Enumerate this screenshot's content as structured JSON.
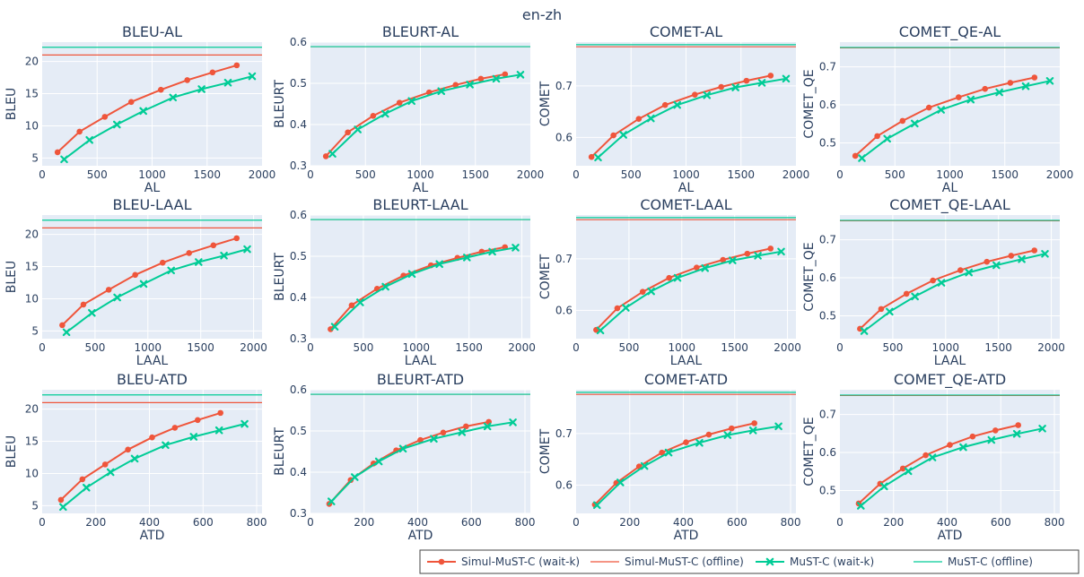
{
  "figure_title": "en-zh",
  "colors": {
    "simul_waitk": "#EF553B",
    "simul_offline": "#EF553B",
    "must_waitk": "#00CC96",
    "must_offline": "#00CC96",
    "plot_bg": "#E5ECF6",
    "grid": "#ffffff"
  },
  "legend": {
    "placement": "bottom-right",
    "entries": [
      {
        "name": "Simul-MuST-C (wait-k)",
        "style": "line-dot"
      },
      {
        "name": "Simul-MuST-C (offline)",
        "style": "line"
      },
      {
        "name": "MuST-C (wait-k)",
        "style": "line-x"
      },
      {
        "name": "MuST-C (offline)",
        "style": "line"
      }
    ]
  },
  "chart_data": [
    {
      "type": "line",
      "title": "BLEU-AL",
      "xlabel": "AL",
      "ylabel": "BLEU",
      "xlim": [
        0,
        2000
      ],
      "ylim": [
        3.8,
        23
      ],
      "xticks": [
        0,
        500,
        1000,
        1500,
        2000
      ],
      "yticks": [
        5,
        10,
        15,
        20
      ],
      "series": [
        {
          "name": "Simul-MuST-C (wait-k)",
          "x": [
            140,
            340,
            570,
            810,
            1080,
            1320,
            1550,
            1770
          ],
          "y": [
            5.9,
            9.1,
            11.4,
            13.7,
            15.6,
            17.1,
            18.3,
            19.4
          ]
        },
        {
          "name": "MuST-C (wait-k)",
          "x": [
            200,
            430,
            680,
            920,
            1190,
            1450,
            1690,
            1910
          ],
          "y": [
            4.8,
            7.8,
            10.2,
            12.3,
            14.4,
            15.7,
            16.7,
            17.7
          ]
        }
      ],
      "offline": [
        {
          "name": "Simul-MuST-C (offline)",
          "y": 21.0
        },
        {
          "name": "MuST-C (offline)",
          "y": 22.2
        }
      ]
    },
    {
      "type": "line",
      "title": "BLEURT-AL",
      "xlabel": "AL",
      "ylabel": "BLEURT",
      "xlim": [
        0,
        2000
      ],
      "ylim": [
        0.3,
        0.6
      ],
      "xticks": [
        0,
        500,
        1000,
        1500,
        2000
      ],
      "yticks": [
        0.3,
        0.4,
        0.5,
        0.6
      ],
      "series": [
        {
          "name": "Simul-MuST-C (wait-k)",
          "x": [
            140,
            340,
            570,
            810,
            1080,
            1320,
            1550,
            1770
          ],
          "y": [
            0.323,
            0.381,
            0.421,
            0.453,
            0.478,
            0.496,
            0.511,
            0.522
          ]
        },
        {
          "name": "MuST-C (wait-k)",
          "x": [
            200,
            430,
            680,
            920,
            1190,
            1450,
            1690,
            1910
          ],
          "y": [
            0.329,
            0.388,
            0.426,
            0.457,
            0.481,
            0.497,
            0.511,
            0.521
          ]
        }
      ],
      "offline": [
        {
          "name": "Simul-MuST-C (offline)",
          "y": 0.589
        },
        {
          "name": "MuST-C (offline)",
          "y": 0.589
        }
      ]
    },
    {
      "type": "line",
      "title": "COMET-AL",
      "xlabel": "AL",
      "ylabel": "COMET",
      "xlim": [
        0,
        2000
      ],
      "ylim": [
        0.545,
        0.785
      ],
      "xticks": [
        0,
        500,
        1000,
        1500,
        2000
      ],
      "yticks": [
        0.6,
        0.7
      ],
      "series": [
        {
          "name": "Simul-MuST-C (wait-k)",
          "x": [
            140,
            340,
            570,
            810,
            1080,
            1320,
            1550,
            1770
          ],
          "y": [
            0.562,
            0.604,
            0.636,
            0.663,
            0.683,
            0.698,
            0.71,
            0.72
          ]
        },
        {
          "name": "MuST-C (wait-k)",
          "x": [
            200,
            430,
            680,
            920,
            1190,
            1450,
            1690,
            1910
          ],
          "y": [
            0.561,
            0.605,
            0.637,
            0.663,
            0.682,
            0.697,
            0.706,
            0.714
          ]
        }
      ],
      "offline": [
        {
          "name": "Simul-MuST-C (offline)",
          "y": 0.776
        },
        {
          "name": "MuST-C (offline)",
          "y": 0.78
        }
      ]
    },
    {
      "type": "line",
      "title": "COMET_QE-AL",
      "xlabel": "AL",
      "ylabel": "COMET_QE",
      "xlim": [
        0,
        2000
      ],
      "ylim": [
        0.44,
        0.765
      ],
      "xticks": [
        0,
        500,
        1000,
        1500,
        2000
      ],
      "yticks": [
        0.5,
        0.6,
        0.7
      ],
      "series": [
        {
          "name": "Simul-MuST-C (wait-k)",
          "x": [
            140,
            340,
            570,
            810,
            1080,
            1320,
            1550,
            1770
          ],
          "y": [
            0.466,
            0.518,
            0.558,
            0.593,
            0.62,
            0.642,
            0.658,
            0.672
          ]
        },
        {
          "name": "MuST-C (wait-k)",
          "x": [
            200,
            430,
            680,
            920,
            1190,
            1450,
            1690,
            1910
          ],
          "y": [
            0.46,
            0.511,
            0.551,
            0.587,
            0.614,
            0.633,
            0.649,
            0.663
          ]
        }
      ],
      "offline": [
        {
          "name": "Simul-MuST-C (offline)",
          "y": 0.75
        },
        {
          "name": "MuST-C (offline)",
          "y": 0.751
        }
      ]
    },
    {
      "type": "line",
      "title": "BLEU-LAAL",
      "xlabel": "LAAL",
      "ylabel": "BLEU",
      "xlim": [
        0,
        2080
      ],
      "ylim": [
        3.8,
        23
      ],
      "xticks": [
        0,
        500,
        1000,
        1500,
        2000
      ],
      "yticks": [
        5,
        10,
        15,
        20
      ],
      "series": [
        {
          "name": "Simul-MuST-C (wait-k)",
          "x": [
            190,
            390,
            630,
            880,
            1140,
            1390,
            1620,
            1840
          ],
          "y": [
            5.9,
            9.1,
            11.4,
            13.7,
            15.6,
            17.1,
            18.3,
            19.4
          ]
        },
        {
          "name": "MuST-C (wait-k)",
          "x": [
            230,
            470,
            710,
            960,
            1220,
            1480,
            1720,
            1940
          ],
          "y": [
            4.8,
            7.8,
            10.2,
            12.3,
            14.4,
            15.7,
            16.7,
            17.7
          ]
        }
      ],
      "offline": [
        {
          "name": "Simul-MuST-C (offline)",
          "y": 21.0
        },
        {
          "name": "MuST-C (offline)",
          "y": 22.2
        }
      ]
    },
    {
      "type": "line",
      "title": "BLEURT-LAAL",
      "xlabel": "LAAL",
      "ylabel": "BLEURT",
      "xlim": [
        0,
        2080
      ],
      "ylim": [
        0.3,
        0.6
      ],
      "xticks": [
        0,
        500,
        1000,
        1500,
        2000
      ],
      "yticks": [
        0.3,
        0.4,
        0.5,
        0.6
      ],
      "series": [
        {
          "name": "Simul-MuST-C (wait-k)",
          "x": [
            190,
            390,
            630,
            880,
            1140,
            1390,
            1620,
            1840
          ],
          "y": [
            0.323,
            0.381,
            0.421,
            0.453,
            0.478,
            0.496,
            0.511,
            0.522
          ]
        },
        {
          "name": "MuST-C (wait-k)",
          "x": [
            230,
            470,
            710,
            960,
            1220,
            1480,
            1720,
            1940
          ],
          "y": [
            0.329,
            0.388,
            0.426,
            0.457,
            0.481,
            0.497,
            0.511,
            0.521
          ]
        }
      ],
      "offline": [
        {
          "name": "Simul-MuST-C (offline)",
          "y": 0.589
        },
        {
          "name": "MuST-C (offline)",
          "y": 0.589
        }
      ]
    },
    {
      "type": "line",
      "title": "COMET-LAAL",
      "xlabel": "LAAL",
      "ylabel": "COMET",
      "xlim": [
        0,
        2080
      ],
      "ylim": [
        0.545,
        0.785
      ],
      "xticks": [
        0,
        500,
        1000,
        1500,
        2000
      ],
      "yticks": [
        0.6,
        0.7
      ],
      "series": [
        {
          "name": "Simul-MuST-C (wait-k)",
          "x": [
            190,
            390,
            630,
            880,
            1140,
            1390,
            1620,
            1840
          ],
          "y": [
            0.562,
            0.604,
            0.636,
            0.663,
            0.683,
            0.698,
            0.71,
            0.72
          ]
        },
        {
          "name": "MuST-C (wait-k)",
          "x": [
            230,
            470,
            710,
            960,
            1220,
            1480,
            1720,
            1940
          ],
          "y": [
            0.561,
            0.605,
            0.637,
            0.663,
            0.682,
            0.697,
            0.706,
            0.714
          ]
        }
      ],
      "offline": [
        {
          "name": "Simul-MuST-C (offline)",
          "y": 0.776
        },
        {
          "name": "MuST-C (offline)",
          "y": 0.78
        }
      ]
    },
    {
      "type": "line",
      "title": "COMET_QE-LAAL",
      "xlabel": "LAAL",
      "ylabel": "COMET_QE",
      "xlim": [
        0,
        2080
      ],
      "ylim": [
        0.44,
        0.765
      ],
      "xticks": [
        0,
        500,
        1000,
        1500,
        2000
      ],
      "yticks": [
        0.5,
        0.6,
        0.7
      ],
      "series": [
        {
          "name": "Simul-MuST-C (wait-k)",
          "x": [
            190,
            390,
            630,
            880,
            1140,
            1390,
            1620,
            1840
          ],
          "y": [
            0.466,
            0.518,
            0.558,
            0.593,
            0.62,
            0.642,
            0.658,
            0.672
          ]
        },
        {
          "name": "MuST-C (wait-k)",
          "x": [
            230,
            470,
            710,
            960,
            1220,
            1480,
            1720,
            1940
          ],
          "y": [
            0.46,
            0.511,
            0.551,
            0.587,
            0.614,
            0.633,
            0.649,
            0.663
          ]
        }
      ],
      "offline": [
        {
          "name": "Simul-MuST-C (offline)",
          "y": 0.75
        },
        {
          "name": "MuST-C (offline)",
          "y": 0.751
        }
      ]
    },
    {
      "type": "line",
      "title": "BLEU-ATD",
      "xlabel": "ATD",
      "ylabel": "BLEU",
      "xlim": [
        0,
        820
      ],
      "ylim": [
        3.8,
        23
      ],
      "xticks": [
        0,
        200,
        400,
        600,
        800
      ],
      "yticks": [
        5,
        10,
        15,
        20
      ],
      "series": [
        {
          "name": "Simul-MuST-C (wait-k)",
          "x": [
            70,
            150,
            235,
            320,
            410,
            495,
            580,
            665
          ],
          "y": [
            5.9,
            9.1,
            11.4,
            13.7,
            15.6,
            17.1,
            18.3,
            19.4
          ]
        },
        {
          "name": "MuST-C (wait-k)",
          "x": [
            78,
            165,
            255,
            345,
            460,
            565,
            660,
            755
          ],
          "y": [
            4.8,
            7.8,
            10.2,
            12.3,
            14.4,
            15.7,
            16.7,
            17.7
          ]
        }
      ],
      "offline": [
        {
          "name": "Simul-MuST-C (offline)",
          "y": 21.0
        },
        {
          "name": "MuST-C (offline)",
          "y": 22.2
        }
      ]
    },
    {
      "type": "line",
      "title": "BLEURT-ATD",
      "xlabel": "ATD",
      "ylabel": "BLEURT",
      "xlim": [
        0,
        820
      ],
      "ylim": [
        0.3,
        0.6
      ],
      "xticks": [
        0,
        200,
        400,
        600,
        800
      ],
      "yticks": [
        0.3,
        0.4,
        0.5,
        0.6
      ],
      "series": [
        {
          "name": "Simul-MuST-C (wait-k)",
          "x": [
            70,
            150,
            235,
            320,
            410,
            495,
            580,
            665
          ],
          "y": [
            0.323,
            0.381,
            0.421,
            0.453,
            0.478,
            0.496,
            0.511,
            0.522
          ]
        },
        {
          "name": "MuST-C (wait-k)",
          "x": [
            78,
            165,
            255,
            345,
            460,
            565,
            660,
            755
          ],
          "y": [
            0.329,
            0.388,
            0.426,
            0.457,
            0.481,
            0.497,
            0.511,
            0.521
          ]
        }
      ],
      "offline": [
        {
          "name": "Simul-MuST-C (offline)",
          "y": 0.589
        },
        {
          "name": "MuST-C (offline)",
          "y": 0.589
        }
      ]
    },
    {
      "type": "line",
      "title": "COMET-ATD",
      "xlabel": "ATD",
      "ylabel": "COMET",
      "xlim": [
        0,
        820
      ],
      "ylim": [
        0.545,
        0.785
      ],
      "xticks": [
        0,
        200,
        400,
        600,
        800
      ],
      "yticks": [
        0.6,
        0.7
      ],
      "series": [
        {
          "name": "Simul-MuST-C (wait-k)",
          "x": [
            70,
            150,
            235,
            320,
            410,
            495,
            580,
            665
          ],
          "y": [
            0.562,
            0.604,
            0.636,
            0.663,
            0.683,
            0.698,
            0.71,
            0.72
          ]
        },
        {
          "name": "MuST-C (wait-k)",
          "x": [
            78,
            165,
            255,
            345,
            460,
            565,
            660,
            755
          ],
          "y": [
            0.561,
            0.605,
            0.637,
            0.663,
            0.682,
            0.697,
            0.706,
            0.714
          ]
        }
      ],
      "offline": [
        {
          "name": "Simul-MuST-C (offline)",
          "y": 0.776
        },
        {
          "name": "MuST-C (offline)",
          "y": 0.78
        }
      ]
    },
    {
      "type": "line",
      "title": "COMET_QE-ATD",
      "xlabel": "ATD",
      "ylabel": "COMET_QE",
      "xlim": [
        0,
        820
      ],
      "ylim": [
        0.44,
        0.765
      ],
      "xticks": [
        0,
        200,
        400,
        600,
        800
      ],
      "yticks": [
        0.5,
        0.6,
        0.7
      ],
      "series": [
        {
          "name": "Simul-MuST-C (wait-k)",
          "x": [
            70,
            150,
            235,
            320,
            410,
            495,
            580,
            665
          ],
          "y": [
            0.466,
            0.518,
            0.558,
            0.593,
            0.62,
            0.642,
            0.658,
            0.672
          ]
        },
        {
          "name": "MuST-C (wait-k)",
          "x": [
            78,
            165,
            255,
            345,
            460,
            565,
            660,
            755
          ],
          "y": [
            0.46,
            0.511,
            0.551,
            0.587,
            0.614,
            0.633,
            0.649,
            0.663
          ]
        }
      ],
      "offline": [
        {
          "name": "Simul-MuST-C (offline)",
          "y": 0.75
        },
        {
          "name": "MuST-C (offline)",
          "y": 0.751
        }
      ]
    }
  ]
}
